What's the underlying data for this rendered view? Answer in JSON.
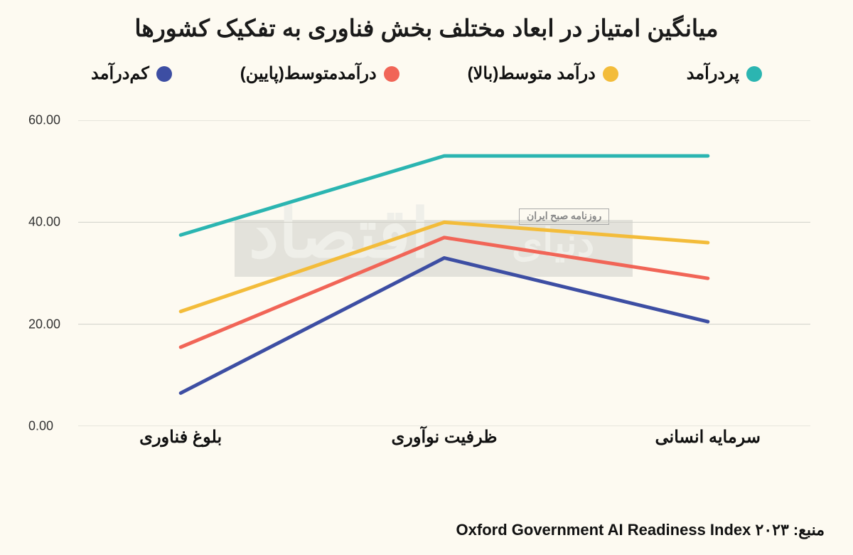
{
  "title": "میانگین امتیاز در ابعاد مختلف بخش فناوری به تفکیک کشورها",
  "source": "منبع: Oxford Government AI Readiness Index ۲۰۲۳",
  "background_color": "#fdfaf1",
  "chart": {
    "type": "line",
    "categories": [
      "سرمایه انسانی",
      "ظرفیت نوآوری",
      "بلوغ فناوری"
    ],
    "ylim": [
      0,
      60
    ],
    "ytick_step": 20,
    "ytick_labels": [
      "0.00",
      "20.00",
      "40.00",
      "60.00"
    ],
    "grid_color": "#d0d0c8",
    "line_width": 5,
    "label_fontsize": 24,
    "tick_fontsize": 18,
    "series": [
      {
        "name": "پردرآمد",
        "color": "#2bb5b1",
        "values": [
          53.0,
          53.0,
          37.5
        ]
      },
      {
        "name": "درآمد متوسط(بالا)",
        "color": "#f3bc3a",
        "values": [
          36.0,
          40.0,
          22.5
        ]
      },
      {
        "name": "درآمدمتوسط(پایین)",
        "color": "#f16557",
        "values": [
          29.0,
          37.0,
          15.5
        ]
      },
      {
        "name": "کم‌درآمد",
        "color": "#3d4ea3",
        "values": [
          20.5,
          33.0,
          6.5
        ]
      }
    ],
    "legend_position": "top",
    "legend_dot_size": 22,
    "legend_fontsize": 24
  },
  "watermark": {
    "band_color": "#d5d5d0",
    "text_main": "اقتصاد",
    "text_prefix": "دنیای",
    "text_sub": "روزنامه صبح ایران",
    "text_color": "#efefe9"
  }
}
